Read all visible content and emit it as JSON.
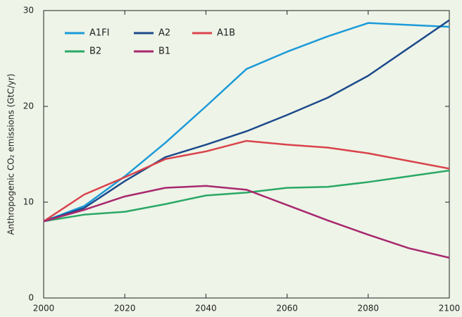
{
  "chart_data": {
    "type": "line",
    "y_label": "Anthropogenic CO₂ emissions (GtC/yr)",
    "x": [
      2000,
      2010,
      2020,
      2030,
      2040,
      2050,
      2060,
      2070,
      2080,
      2090,
      2100
    ],
    "series": [
      {
        "name": "A1FI",
        "color": "#1b9ad8",
        "values": [
          8,
          9.6,
          12.7,
          16.2,
          20.0,
          23.9,
          25.7,
          27.3,
          28.7,
          28.5,
          28.3
        ]
      },
      {
        "name": "A2",
        "color": "#1c4a8b",
        "values": [
          8,
          9.4,
          12.2,
          14.7,
          16.0,
          17.4,
          19.1,
          20.9,
          23.2,
          26.1,
          29.0
        ]
      },
      {
        "name": "A1B",
        "color": "#d9434b",
        "values": [
          8,
          10.8,
          12.6,
          14.5,
          15.3,
          16.4,
          16.0,
          15.7,
          15.1,
          14.3,
          13.5
        ]
      },
      {
        "name": "B2",
        "color": "#2aa866",
        "values": [
          8,
          8.7,
          9.0,
          9.8,
          10.7,
          11.0,
          11.5,
          11.6,
          12.1,
          12.7,
          13.3
        ]
      },
      {
        "name": "B1",
        "color": "#a8286f",
        "values": [
          8,
          9.2,
          10.6,
          11.5,
          11.7,
          11.3,
          9.7,
          8.1,
          6.6,
          5.2,
          4.2
        ]
      }
    ],
    "xlim": [
      2000,
      2100
    ],
    "ylim": [
      0,
      30
    ],
    "xticks": [
      2000,
      2020,
      2040,
      2060,
      2080,
      2100
    ],
    "yticks": [
      0,
      10,
      20,
      30
    ],
    "legend": "upper left"
  }
}
